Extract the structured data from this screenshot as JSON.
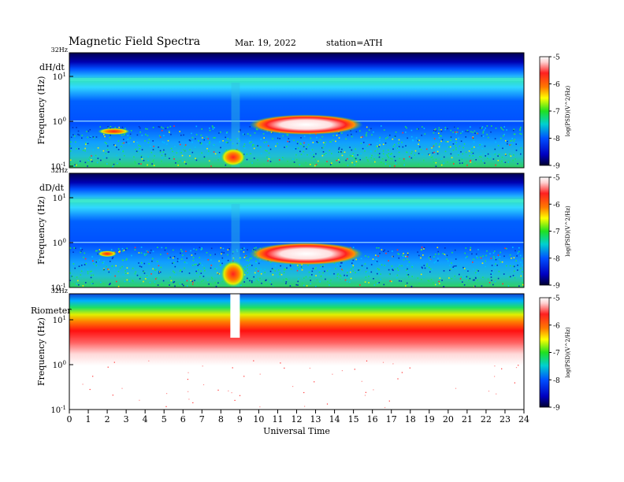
{
  "header": {
    "title": "Magnetic  Field  Spectra",
    "date": "Mar. 19, 2022",
    "station": "station=ATH"
  },
  "chart_data": [
    {
      "type": "heatmap",
      "panel_label": "dH/dt",
      "top_tick": "32Hz",
      "ylabel": "Frequency (Hz)",
      "y_ticks": [
        {
          "base": "10",
          "exp": "1"
        },
        {
          "base": "10",
          "exp": "0"
        },
        {
          "base": "10",
          "exp": "-1"
        }
      ],
      "colorbar": {
        "label": "log(PSD)(V^2/Hz)",
        "ticks": [
          "-5",
          "-6",
          "-7",
          "-8",
          "-9"
        ],
        "range": [
          -9,
          -5
        ]
      },
      "features": [
        {
          "name": "pc1",
          "t": [
            1.5,
            3.2
          ],
          "logf": [
            -0.3,
            -0.15
          ],
          "level": -6.9
        },
        {
          "name": "pi",
          "t": [
            8.0,
            9.3
          ],
          "logf": [
            -1.0,
            -0.6
          ],
          "level": -7.0
        },
        {
          "name": "emic",
          "t": [
            9.5,
            15.5
          ],
          "logf": [
            -0.3,
            0.15
          ],
          "level": -5.2
        }
      ]
    },
    {
      "type": "heatmap",
      "panel_label": "dD/dt",
      "top_tick": "32Hz",
      "ylabel": "Frequency (Hz)",
      "y_ticks": [
        {
          "base": "10",
          "exp": "1"
        },
        {
          "base": "10",
          "exp": "0"
        },
        {
          "base": "10",
          "exp": "-1"
        }
      ],
      "colorbar": {
        "label": "log(PSD)(V^2/Hz)",
        "ticks": [
          "-5",
          "-6",
          "-7",
          "-8",
          "-9"
        ],
        "range": [
          -9,
          -5
        ]
      },
      "features": [
        {
          "name": "pc1",
          "t": [
            1.5,
            2.5
          ],
          "logf": [
            -0.3,
            -0.2
          ],
          "level": -6.9
        },
        {
          "name": "pi",
          "t": [
            8.0,
            9.3
          ],
          "logf": [
            -1.0,
            -0.4
          ],
          "level": -7.0
        },
        {
          "name": "emic",
          "t": [
            9.5,
            15.5
          ],
          "logf": [
            -0.5,
            0.0
          ],
          "level": -5.2
        }
      ]
    },
    {
      "type": "heatmap",
      "panel_label": "Riometer",
      "top_tick": "32Hz",
      "ylabel": "Frequency (Hz)",
      "y_ticks": [
        {
          "base": "10",
          "exp": "1"
        },
        {
          "base": "10",
          "exp": "0"
        },
        {
          "base": "10",
          "exp": "-1"
        }
      ],
      "colorbar": {
        "label": "log(PSD)(V^2/Hz)",
        "ticks": [
          "-5",
          "-6",
          "-7",
          "-8",
          "-9"
        ],
        "range": [
          -9,
          -5
        ]
      },
      "features": [
        {
          "name": "gap",
          "t": [
            8.5,
            9.0
          ],
          "logf": [
            0.6,
            1.5
          ],
          "level": null
        }
      ]
    }
  ],
  "x_axis": {
    "label": "Universal Time",
    "ticks": [
      "0",
      "1",
      "2",
      "3",
      "4",
      "5",
      "6",
      "7",
      "8",
      "9",
      "10",
      "11",
      "12",
      "13",
      "14",
      "15",
      "16",
      "17",
      "18",
      "19",
      "20",
      "21",
      "22",
      "23",
      "24"
    ],
    "range": [
      0,
      24
    ]
  }
}
